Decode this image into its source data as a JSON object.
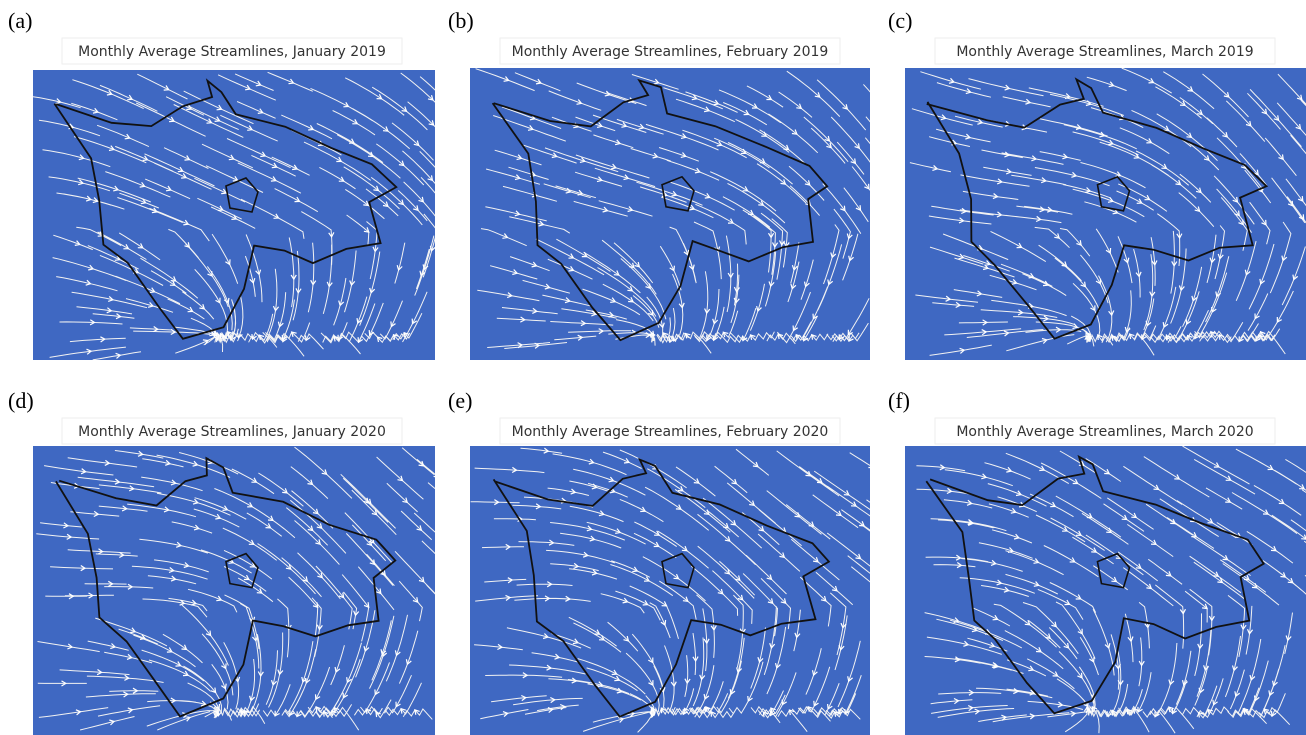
{
  "panels": [
    {
      "label": "(a)",
      "title": "Monthly Average Streamlines, January 2019"
    },
    {
      "label": "(b)",
      "title": "Monthly Average Streamlines, February 2019"
    },
    {
      "label": "(c)",
      "title": "Monthly Average Streamlines, March 2019"
    },
    {
      "label": "(d)",
      "title": "Monthly Average Streamlines, January 2020"
    },
    {
      "label": "(e)",
      "title": "Monthly Average Streamlines, February 2020"
    },
    {
      "label": "(f)",
      "title": "Monthly Average Streamlines, March 2020"
    }
  ]
}
